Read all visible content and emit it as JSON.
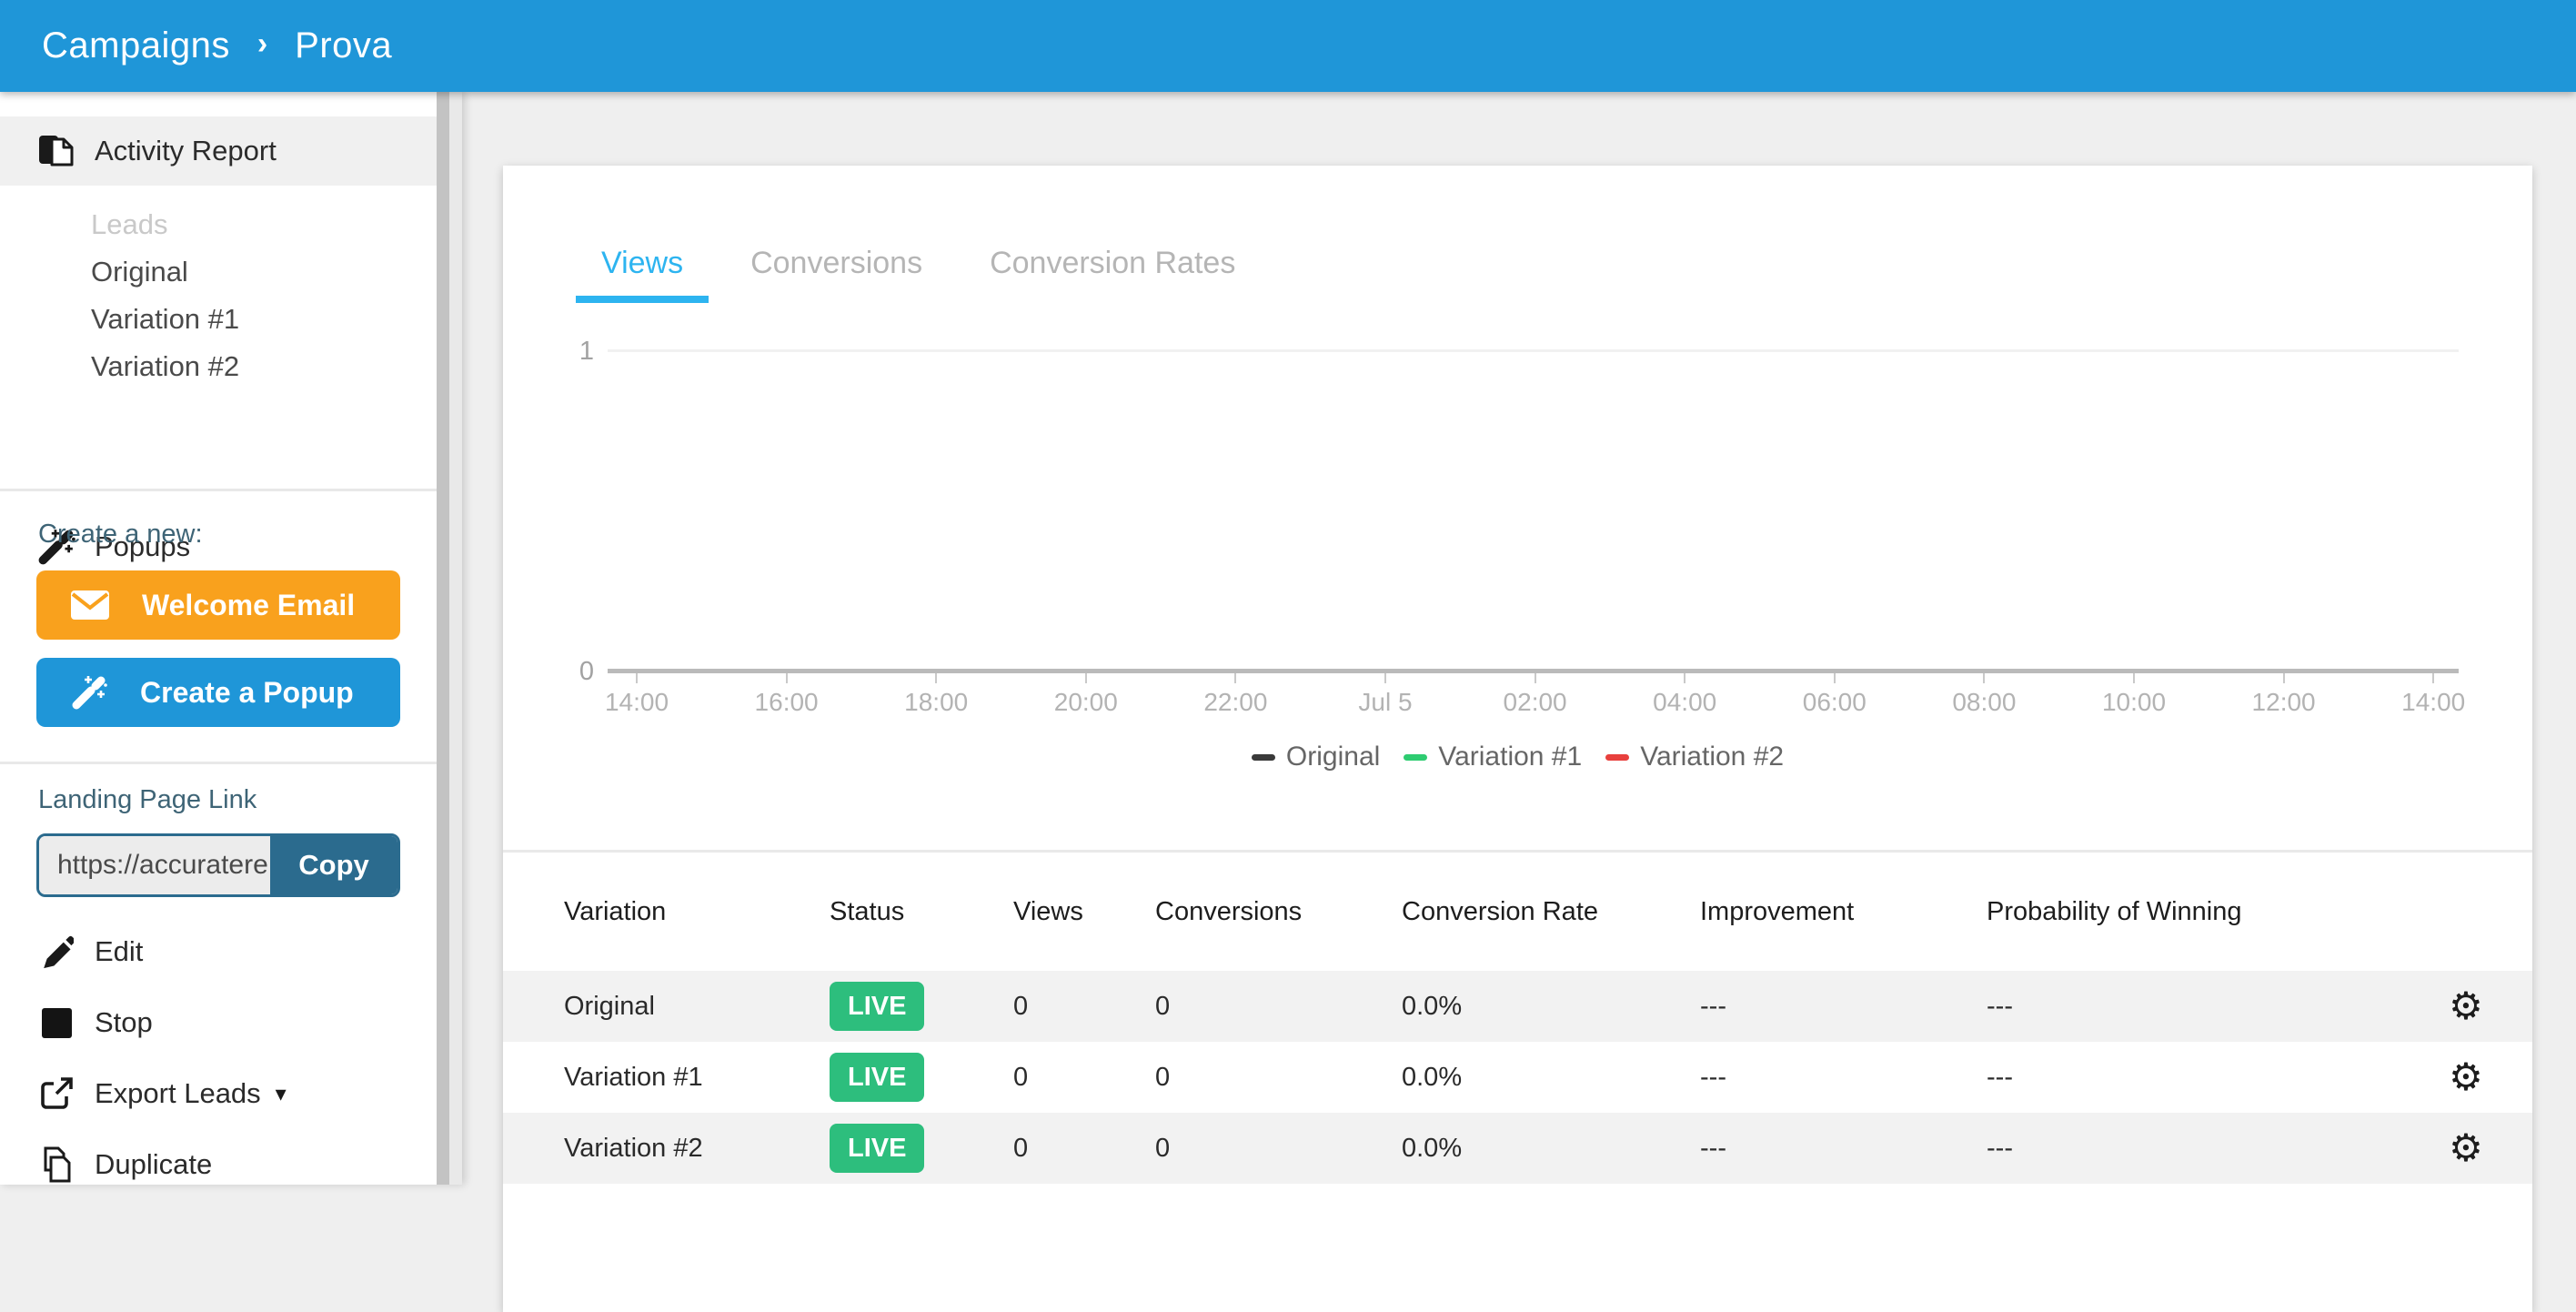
{
  "topbar": {
    "breadcrumb_root": "Campaigns",
    "breadcrumb_sep": "›",
    "breadcrumb_current": "Prova"
  },
  "sidebar": {
    "activity_report_label": "Activity Report",
    "variation_links": [
      {
        "label": "Leads",
        "disabled": true
      },
      {
        "label": "Original",
        "disabled": false
      },
      {
        "label": "Variation #1",
        "disabled": false
      },
      {
        "label": "Variation #2",
        "disabled": false
      }
    ],
    "popups_label": "Popups",
    "create_new_label": "Create a new:",
    "welcome_email_button": "Welcome Email",
    "create_popup_button": "Create a Popup",
    "landing_page_link_label": "Landing Page Link",
    "landing_page_url_value": "https://accuratere",
    "copy_button": "Copy",
    "actions": {
      "edit": "Edit",
      "stop": "Stop",
      "export_leads": "Export Leads",
      "duplicate": "Duplicate"
    }
  },
  "main": {
    "tabs": [
      {
        "label": "Views",
        "active": true
      },
      {
        "label": "Conversions",
        "active": false
      },
      {
        "label": "Conversion Rates",
        "active": false
      }
    ],
    "table": {
      "headers": [
        "Variation",
        "Status",
        "Views",
        "Conversions",
        "Conversion Rate",
        "Improvement",
        "Probability of Winning"
      ],
      "rows": [
        {
          "variation": "Original",
          "status": "LIVE",
          "views": "0",
          "conversions": "0",
          "conversion_rate": "0.0%",
          "improvement": "---",
          "probability": "---"
        },
        {
          "variation": "Variation #1",
          "status": "LIVE",
          "views": "0",
          "conversions": "0",
          "conversion_rate": "0.0%",
          "improvement": "---",
          "probability": "---"
        },
        {
          "variation": "Variation #2",
          "status": "LIVE",
          "views": "0",
          "conversions": "0",
          "conversion_rate": "0.0%",
          "improvement": "---",
          "probability": "---"
        }
      ]
    }
  },
  "chart_data": {
    "type": "line",
    "title": "",
    "x_labels": [
      "14:00",
      "16:00",
      "18:00",
      "20:00",
      "22:00",
      "Jul 5",
      "02:00",
      "04:00",
      "06:00",
      "08:00",
      "10:00",
      "12:00",
      "14:00"
    ],
    "y_ticks": [
      0,
      1
    ],
    "ylim": [
      0,
      1
    ],
    "grid": "top gridline at y=1 only",
    "legend_position": "bottom-center",
    "series": [
      {
        "name": "Original",
        "color": "#3a3a3a",
        "values": [
          0,
          0,
          0,
          0,
          0,
          0,
          0,
          0,
          0,
          0,
          0,
          0,
          0
        ]
      },
      {
        "name": "Variation #1",
        "color": "#2ecc71",
        "values": [
          0,
          0,
          0,
          0,
          0,
          0,
          0,
          0,
          0,
          0,
          0,
          0,
          0
        ]
      },
      {
        "name": "Variation #2",
        "color": "#e8403d",
        "values": [
          0,
          0,
          0,
          0,
          0,
          0,
          0,
          0,
          0,
          0,
          0,
          0,
          0
        ]
      }
    ]
  },
  "colors": {
    "topbar_blue": "#1f96d8",
    "active_tab_blue": "#2db4f0",
    "welcome_email_orange": "#f9a11d",
    "copy_button_steel": "#2b6b8e",
    "live_badge_green": "#2dbe7d",
    "row_stripe": "#f2f2f2",
    "section_label_slate": "#3e6476"
  },
  "icons": {
    "report": "activity-report-icon",
    "wand": "magic-wand-icon",
    "envelope": "envelope-icon",
    "pencil": "pencil-icon",
    "stop": "stop-square-icon",
    "export": "external-link-icon",
    "duplicate": "duplicate-pages-icon",
    "gear": "⚙",
    "caret_down": "▾"
  }
}
